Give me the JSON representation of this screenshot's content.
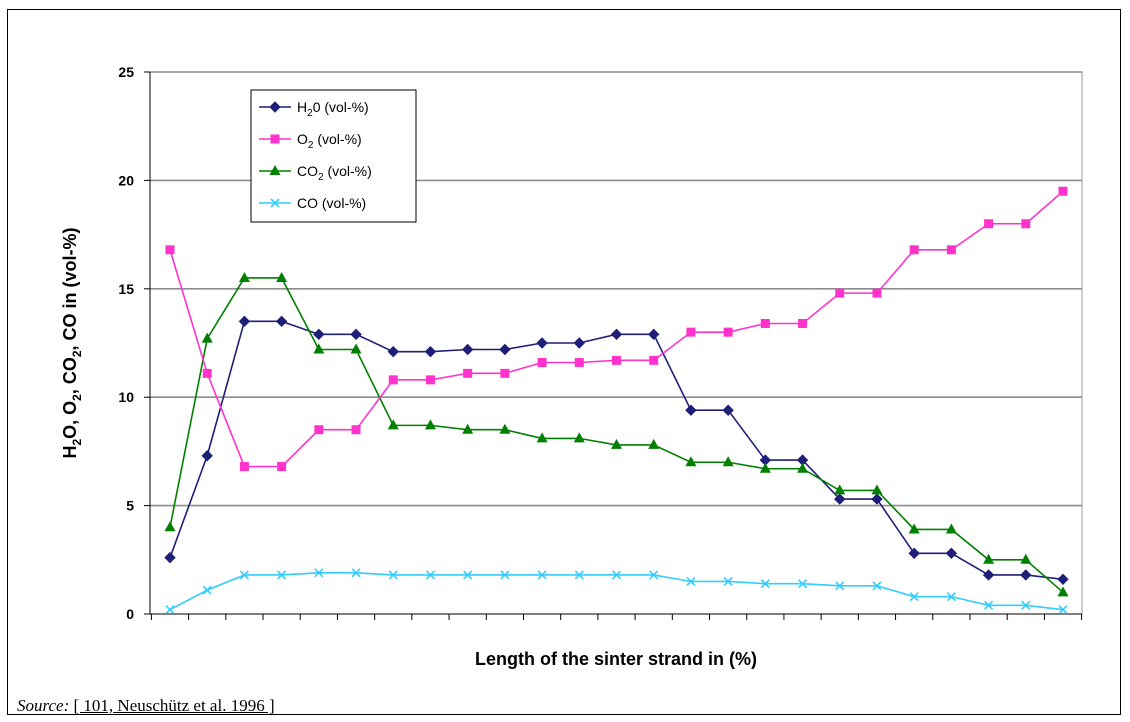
{
  "chart_data": {
    "type": "line",
    "xlabel": "Length of the sinter strand in (%)",
    "ylabel": [
      "H",
      "2",
      "O, O",
      "2",
      ", CO",
      "2",
      ", CO in (vol-%)"
    ],
    "ylim": [
      0,
      25
    ],
    "yticks": [
      0,
      5,
      10,
      15,
      20,
      25
    ],
    "x_count": 25,
    "grid": true,
    "legend_position": "top-left inside",
    "series": [
      {
        "name": "H20 (vol-%)",
        "name_parts": [
          "H",
          "2",
          "0 (vol-%)"
        ],
        "marker": "diamond",
        "color": "#1f1f7a",
        "values": [
          2.6,
          7.3,
          13.5,
          13.5,
          12.9,
          12.9,
          12.1,
          12.1,
          12.2,
          12.2,
          12.5,
          12.5,
          12.9,
          12.9,
          9.4,
          9.4,
          7.1,
          7.1,
          5.3,
          5.3,
          2.8,
          2.8,
          1.8,
          1.8,
          1.6
        ]
      },
      {
        "name": "O2 (vol-%)",
        "name_parts": [
          "O",
          "2",
          " (vol-%)"
        ],
        "marker": "square",
        "color": "#ff33cc",
        "values": [
          16.8,
          11.1,
          6.8,
          6.8,
          8.5,
          8.5,
          10.8,
          10.8,
          11.1,
          11.1,
          11.6,
          11.6,
          11.7,
          11.7,
          13.0,
          13.0,
          13.4,
          13.4,
          14.8,
          14.8,
          16.8,
          16.8,
          18.0,
          18.0,
          19.5
        ]
      },
      {
        "name": "CO2 (vol-%)",
        "name_parts": [
          "CO",
          "2",
          " (vol-%)"
        ],
        "marker": "triangle",
        "color": "#008000",
        "values": [
          4.0,
          12.7,
          15.5,
          15.5,
          12.2,
          12.2,
          8.7,
          8.7,
          8.5,
          8.5,
          8.1,
          8.1,
          7.8,
          7.8,
          7.0,
          7.0,
          6.7,
          6.7,
          5.7,
          5.7,
          3.9,
          3.9,
          2.5,
          2.5,
          1.0
        ]
      },
      {
        "name": "CO (vol-%)",
        "name_parts": [
          "CO (vol-%)"
        ],
        "marker": "x",
        "color": "#33ccff",
        "values": [
          0.2,
          1.1,
          1.8,
          1.8,
          1.9,
          1.9,
          1.8,
          1.8,
          1.8,
          1.8,
          1.8,
          1.8,
          1.8,
          1.8,
          1.5,
          1.5,
          1.4,
          1.4,
          1.3,
          1.3,
          0.8,
          0.8,
          0.4,
          0.4,
          0.2
        ]
      }
    ]
  },
  "source": {
    "lead": "Source:",
    "reference": "[ 101, Neuschütz et al. 1996 ]"
  }
}
